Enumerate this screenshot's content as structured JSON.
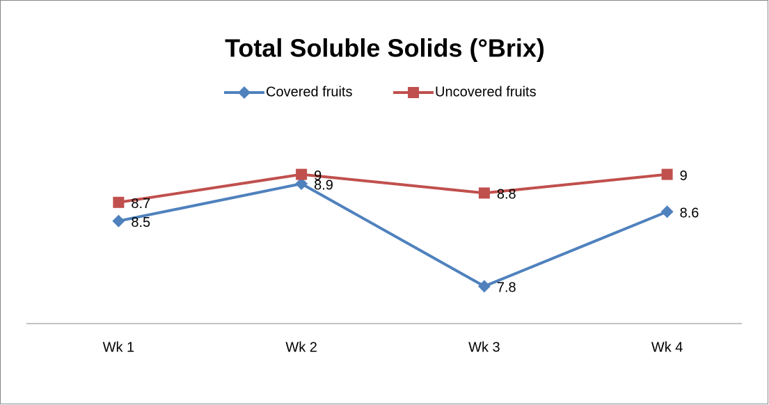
{
  "chart_data": {
    "type": "line",
    "title": "Total Soluble Solids (°Brix)",
    "categories": [
      "Wk 1",
      "Wk 2",
      "Wk 3",
      "Wk 4"
    ],
    "series": [
      {
        "name": "Covered fruits",
        "color": "#4f81bd",
        "marker": "diamond",
        "values": [
          8.5,
          8.9,
          7.8,
          8.6
        ]
      },
      {
        "name": "Uncovered fruits",
        "color": "#c0504d",
        "marker": "square",
        "values": [
          8.7,
          9,
          8.8,
          9
        ]
      }
    ],
    "ylim": [
      7.4,
      9.4
    ],
    "legend": "top"
  }
}
